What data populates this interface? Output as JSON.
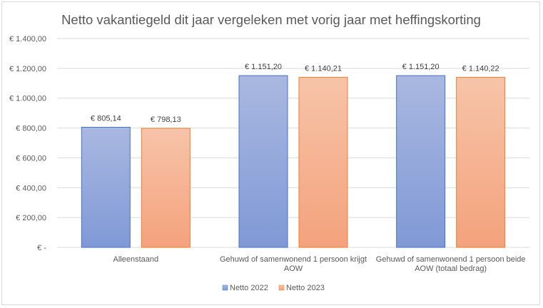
{
  "chart_data": {
    "type": "bar",
    "title": "Netto vakantiegeld dit jaar vergeleken met vorig jaar met heffingskorting",
    "categories": [
      [
        "Alleenstaand"
      ],
      [
        "Gehuwd of samenwonend 1 persoon krijgt",
        "AOW"
      ],
      [
        "Gehuwd of samenwonend 1 persoon beide",
        "AOW (totaal bedrag)"
      ]
    ],
    "series": [
      {
        "name": "Netto 2022",
        "values": [
          805.14,
          1151.2,
          1151.2
        ],
        "labels": [
          "€ 805,14",
          "€ 1.151,20",
          "€ 1.151,20"
        ]
      },
      {
        "name": "Netto 2023",
        "values": [
          798.13,
          1140.21,
          1140.22
        ],
        "labels": [
          "€ 798,13",
          "€ 1.140,21",
          "€ 1.140,22"
        ]
      }
    ],
    "ylim": [
      0,
      1400
    ],
    "yticks": [
      0,
      200,
      400,
      600,
      800,
      1000,
      1200,
      1400
    ],
    "ytick_labels": [
      "€ -",
      "€ 200,00",
      "€ 400,00",
      "€ 600,00",
      "€ 800,00",
      "€ 1.000,00",
      "€ 1.200,00",
      "€ 1.400,00"
    ],
    "grid": true,
    "legend_position": "bottom",
    "colors": {
      "series1_top": "#a9b8e0",
      "series1_bottom": "#8099d6",
      "series1_border": "#4472c4",
      "series2_top": "#f7c4a9",
      "series2_bottom": "#f4a27c",
      "series2_border": "#ed7d31",
      "grid": "#d9d9d9"
    }
  }
}
